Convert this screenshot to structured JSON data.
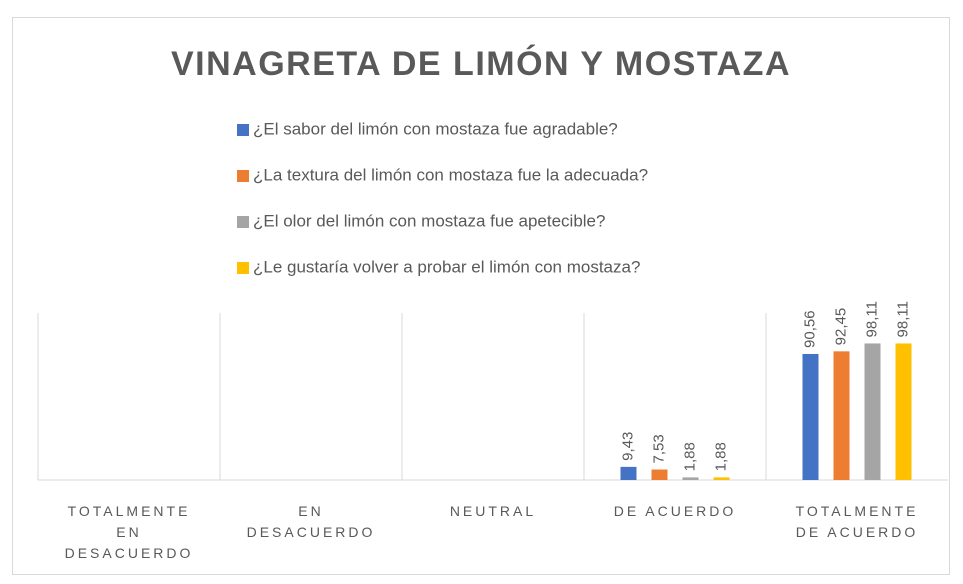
{
  "chart_data": {
    "type": "bar",
    "title": "VINAGRETA DE LIMÓN Y MOSTAZA",
    "categories": [
      "TOTALMENTE EN DESACUERDO",
      "EN DESACUERDO",
      "NEUTRAL",
      "DE ACUERDO",
      "TOTALMENTE DE ACUERDO"
    ],
    "series": [
      {
        "name": "¿El sabor del limón con mostaza fue agradable?",
        "color": "#4472c4",
        "values": [
          null,
          null,
          null,
          9.43,
          90.56
        ],
        "value_labels": [
          null,
          null,
          null,
          "9,43",
          "90,56"
        ]
      },
      {
        "name": "¿La textura del limón con mostaza fue la adecuada?",
        "color": "#ed7d31",
        "values": [
          null,
          null,
          null,
          7.53,
          92.45
        ],
        "value_labels": [
          null,
          null,
          null,
          "7,53",
          "92,45"
        ]
      },
      {
        "name": "¿El olor del limón con mostaza fue apetecible?",
        "color": "#a5a5a5",
        "values": [
          null,
          null,
          null,
          1.88,
          98.11
        ],
        "value_labels": [
          null,
          null,
          null,
          "1,88",
          "98,11"
        ]
      },
      {
        "name": "¿Le gustaría volver a probar el limón con mostaza?",
        "color": "#ffc000",
        "values": [
          null,
          null,
          null,
          1.88,
          98.11
        ],
        "value_labels": [
          null,
          null,
          null,
          "1,88",
          "98,11"
        ]
      }
    ],
    "ylim": [
      0,
      120
    ]
  }
}
